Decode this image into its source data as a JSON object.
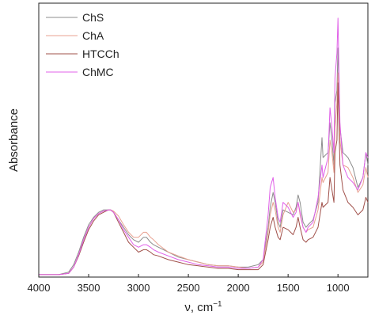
{
  "chart_data": {
    "type": "line",
    "title": "",
    "xlabel": "ν, cm",
    "xlabel_superscript": "−1",
    "ylabel": "Absorbance",
    "xlim": [
      4000,
      700
    ],
    "x_reversed": true,
    "ylim": [
      0,
      1.1
    ],
    "y_ticks_shown": false,
    "grid": false,
    "legend_position": "top-left",
    "x_ticks": [
      4000,
      3500,
      3000,
      2500,
      2000,
      1500,
      1000
    ],
    "x_tick_labels": [
      "4000",
      "3500",
      "3000",
      "2500",
      "2000",
      "1500",
      "1000"
    ],
    "series": [
      {
        "name": "ChS",
        "color": "#8c8c8c",
        "x": [
          4000,
          3800,
          3700,
          3650,
          3600,
          3550,
          3500,
          3450,
          3400,
          3350,
          3300,
          3280,
          3250,
          3200,
          3150,
          3100,
          3050,
          3000,
          2950,
          2920,
          2880,
          2850,
          2800,
          2700,
          2600,
          2500,
          2400,
          2300,
          2200,
          2100,
          2000,
          1900,
          1800,
          1750,
          1700,
          1680,
          1650,
          1630,
          1600,
          1580,
          1550,
          1500,
          1450,
          1420,
          1400,
          1380,
          1350,
          1320,
          1300,
          1250,
          1200,
          1160,
          1150,
          1100,
          1080,
          1060,
          1040,
          1030,
          1010,
          1000,
          980,
          950,
          900,
          850,
          800,
          750,
          720,
          700
        ],
        "y": [
          0.01,
          0.01,
          0.02,
          0.05,
          0.1,
          0.16,
          0.21,
          0.24,
          0.26,
          0.27,
          0.27,
          0.27,
          0.26,
          0.23,
          0.2,
          0.17,
          0.15,
          0.14,
          0.16,
          0.16,
          0.14,
          0.13,
          0.12,
          0.1,
          0.08,
          0.07,
          0.06,
          0.05,
          0.045,
          0.045,
          0.04,
          0.04,
          0.05,
          0.07,
          0.2,
          0.28,
          0.34,
          0.3,
          0.22,
          0.2,
          0.27,
          0.26,
          0.25,
          0.28,
          0.33,
          0.3,
          0.22,
          0.2,
          0.21,
          0.23,
          0.3,
          0.56,
          0.48,
          0.5,
          0.62,
          0.55,
          0.45,
          0.7,
          0.75,
          0.92,
          0.6,
          0.5,
          0.48,
          0.44,
          0.36,
          0.4,
          0.5,
          0.45
        ]
      },
      {
        "name": "ChA",
        "color": "#e8a090",
        "x": [
          4000,
          3800,
          3700,
          3650,
          3600,
          3550,
          3500,
          3450,
          3400,
          3350,
          3300,
          3280,
          3250,
          3200,
          3150,
          3100,
          3050,
          3000,
          2950,
          2920,
          2880,
          2850,
          2800,
          2700,
          2600,
          2500,
          2400,
          2300,
          2200,
          2100,
          2000,
          1900,
          1800,
          1750,
          1700,
          1680,
          1650,
          1630,
          1600,
          1580,
          1550,
          1500,
          1450,
          1420,
          1400,
          1380,
          1350,
          1320,
          1300,
          1250,
          1200,
          1160,
          1150,
          1100,
          1080,
          1060,
          1040,
          1030,
          1010,
          1000,
          980,
          950,
          900,
          850,
          800,
          750,
          720,
          700
        ],
        "y": [
          0.01,
          0.01,
          0.015,
          0.04,
          0.09,
          0.15,
          0.2,
          0.235,
          0.255,
          0.265,
          0.27,
          0.27,
          0.265,
          0.245,
          0.21,
          0.18,
          0.16,
          0.16,
          0.18,
          0.18,
          0.16,
          0.15,
          0.13,
          0.1,
          0.085,
          0.07,
          0.06,
          0.05,
          0.045,
          0.045,
          0.04,
          0.035,
          0.04,
          0.06,
          0.18,
          0.25,
          0.3,
          0.27,
          0.2,
          0.18,
          0.25,
          0.3,
          0.26,
          0.27,
          0.3,
          0.25,
          0.2,
          0.18,
          0.19,
          0.2,
          0.27,
          0.4,
          0.38,
          0.42,
          0.55,
          0.5,
          0.42,
          0.6,
          0.7,
          0.82,
          0.55,
          0.45,
          0.44,
          0.4,
          0.34,
          0.37,
          0.44,
          0.4
        ]
      },
      {
        "name": "HTCCh",
        "color": "#a0504a",
        "x": [
          4000,
          3800,
          3700,
          3650,
          3600,
          3550,
          3500,
          3450,
          3400,
          3350,
          3300,
          3280,
          3250,
          3200,
          3150,
          3100,
          3050,
          3000,
          2950,
          2920,
          2880,
          2850,
          2800,
          2700,
          2600,
          2500,
          2400,
          2300,
          2200,
          2100,
          2000,
          1900,
          1800,
          1750,
          1700,
          1680,
          1650,
          1630,
          1600,
          1580,
          1550,
          1500,
          1450,
          1420,
          1400,
          1380,
          1350,
          1320,
          1300,
          1250,
          1200,
          1160,
          1150,
          1100,
          1080,
          1060,
          1040,
          1030,
          1010,
          1000,
          980,
          950,
          900,
          850,
          800,
          750,
          720,
          700
        ],
        "y": [
          0.01,
          0.01,
          0.015,
          0.04,
          0.085,
          0.14,
          0.19,
          0.225,
          0.25,
          0.26,
          0.27,
          0.27,
          0.26,
          0.22,
          0.18,
          0.14,
          0.12,
          0.1,
          0.11,
          0.11,
          0.1,
          0.09,
          0.085,
          0.07,
          0.06,
          0.05,
          0.045,
          0.04,
          0.035,
          0.035,
          0.03,
          0.03,
          0.03,
          0.05,
          0.15,
          0.2,
          0.24,
          0.2,
          0.16,
          0.15,
          0.2,
          0.19,
          0.17,
          0.2,
          0.24,
          0.2,
          0.15,
          0.14,
          0.15,
          0.16,
          0.2,
          0.3,
          0.28,
          0.3,
          0.4,
          0.35,
          0.3,
          0.5,
          0.55,
          0.78,
          0.45,
          0.35,
          0.3,
          0.28,
          0.25,
          0.27,
          0.32,
          0.3
        ]
      },
      {
        "name": "ChMC",
        "color": "#e060e8",
        "x": [
          4000,
          3800,
          3700,
          3650,
          3600,
          3550,
          3500,
          3450,
          3400,
          3350,
          3300,
          3280,
          3250,
          3200,
          3150,
          3100,
          3050,
          3000,
          2950,
          2920,
          2880,
          2850,
          2800,
          2700,
          2600,
          2500,
          2400,
          2300,
          2200,
          2100,
          2000,
          1900,
          1800,
          1750,
          1700,
          1680,
          1650,
          1630,
          1600,
          1580,
          1550,
          1500,
          1450,
          1420,
          1400,
          1380,
          1350,
          1320,
          1300,
          1250,
          1200,
          1160,
          1150,
          1100,
          1080,
          1060,
          1040,
          1030,
          1010,
          1000,
          980,
          950,
          900,
          850,
          800,
          750,
          720,
          700
        ],
        "y": [
          0.01,
          0.01,
          0.015,
          0.04,
          0.09,
          0.15,
          0.2,
          0.235,
          0.255,
          0.265,
          0.27,
          0.27,
          0.26,
          0.23,
          0.19,
          0.16,
          0.13,
          0.12,
          0.13,
          0.13,
          0.12,
          0.11,
          0.1,
          0.085,
          0.07,
          0.06,
          0.05,
          0.045,
          0.04,
          0.04,
          0.035,
          0.035,
          0.04,
          0.07,
          0.25,
          0.36,
          0.4,
          0.32,
          0.24,
          0.22,
          0.3,
          0.28,
          0.24,
          0.26,
          0.3,
          0.26,
          0.2,
          0.18,
          0.2,
          0.22,
          0.32,
          0.45,
          0.4,
          0.48,
          0.68,
          0.6,
          0.5,
          0.8,
          0.9,
          1.04,
          0.62,
          0.45,
          0.4,
          0.38,
          0.35,
          0.4,
          0.5,
          0.48
        ]
      }
    ]
  }
}
